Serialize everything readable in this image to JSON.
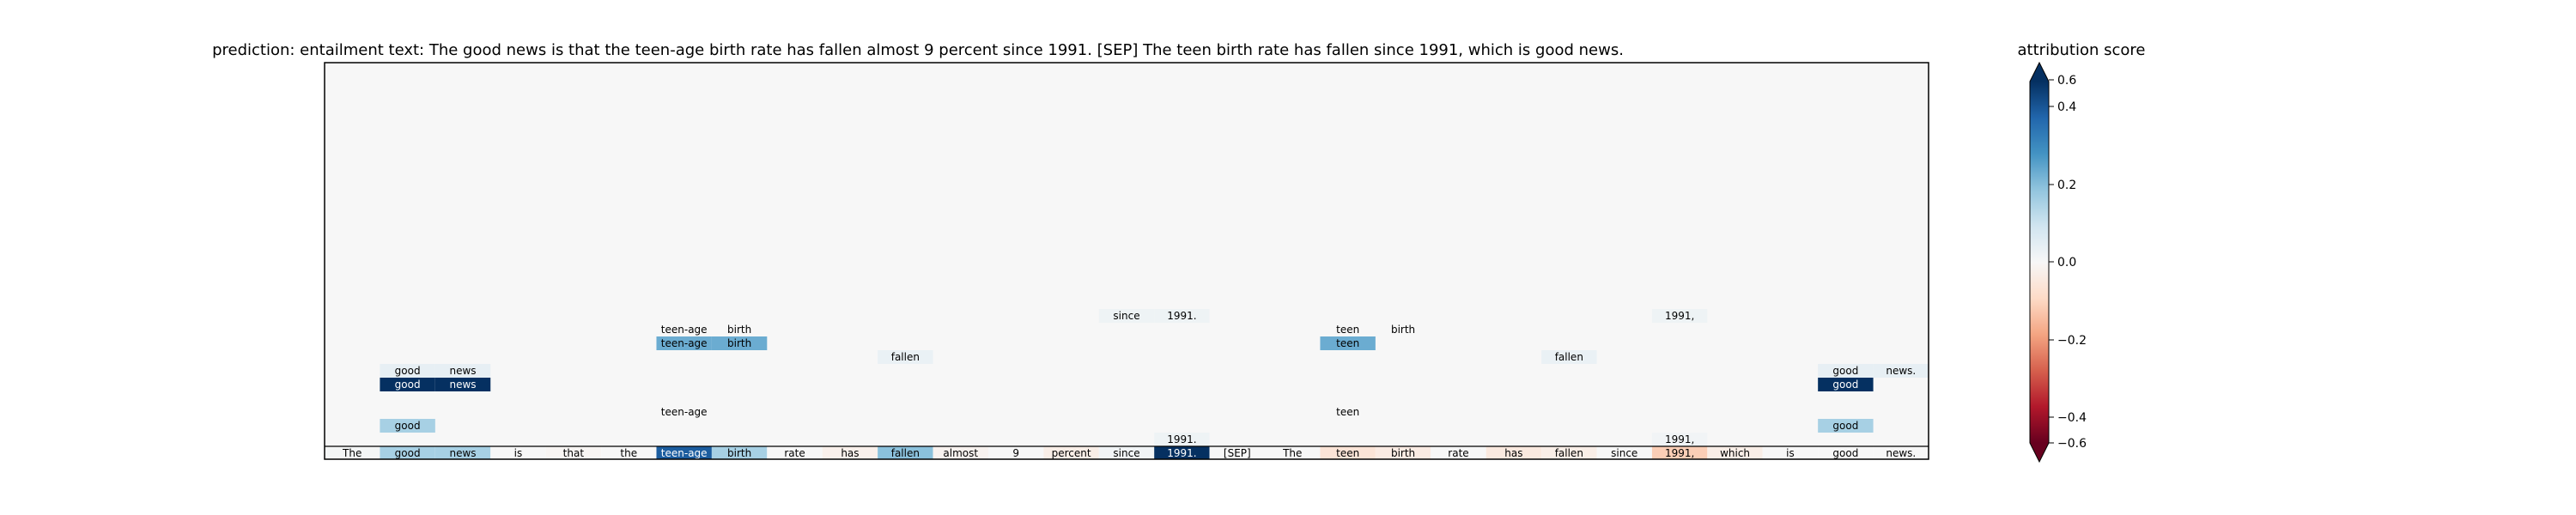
{
  "title": "prediction:  entailment     text:  The good news is that the teen-age birth rate has fallen almost 9 percent since 1991. [SEP] The teen birth rate has fallen since 1991, which is good news.",
  "colorbar": {
    "title": "attribution score",
    "ticks": [
      "0.6",
      "0.4",
      "0.2",
      "0.0",
      "−0.2",
      "−0.4",
      "−0.6"
    ]
  },
  "chart_data": {
    "type": "heatmap",
    "title": "prediction:  entailment     text:  The good news is that the teen-age birth rate has fallen almost 9 percent since 1991. [SEP] The teen birth rate has fallen since 1991, which is good news.",
    "colorbar_label": "attribution score",
    "value_range": [
      -0.6,
      0.6
    ],
    "tokens": [
      "The",
      "good",
      "news",
      "is",
      "that",
      "the",
      "teen-age",
      "birth",
      "rate",
      "has",
      "fallen",
      "almost",
      "9",
      "percent",
      "since",
      "1991.",
      "[SEP]",
      "The",
      "teen",
      "birth",
      "rate",
      "has",
      "fallen",
      "since",
      "1991,",
      "which",
      "is",
      "good",
      "news."
    ],
    "base_row_values": [
      0.01,
      0.2,
      0.2,
      0.0,
      -0.01,
      0.0,
      0.5,
      0.2,
      0.0,
      -0.03,
      0.25,
      -0.02,
      0.0,
      -0.04,
      0.02,
      0.6,
      0.0,
      0.0,
      -0.08,
      -0.05,
      0.0,
      -0.06,
      -0.04,
      0.0,
      -0.15,
      -0.04,
      0.0,
      0.0,
      0.0
    ],
    "layer_cells": [
      {
        "layer": 1,
        "col": 15,
        "value": 0.03,
        "label": "1991."
      },
      {
        "layer": 1,
        "col": 24,
        "value": 0.02,
        "label": "1991,"
      },
      {
        "layer": 2,
        "col": 1,
        "value": 0.2,
        "label": "good"
      },
      {
        "layer": 2,
        "col": 27,
        "value": 0.2,
        "label": "good"
      },
      {
        "layer": 3,
        "col": 6,
        "value": 0.0,
        "label": "teen-age"
      },
      {
        "layer": 3,
        "col": 18,
        "value": 0.0,
        "label": "teen"
      },
      {
        "layer": 5,
        "col": 1,
        "value": 0.65,
        "label": "good"
      },
      {
        "layer": 5,
        "col": 2,
        "value": 0.65,
        "label": "news"
      },
      {
        "layer": 5,
        "col": 27,
        "value": 0.65,
        "label": "good"
      },
      {
        "layer": 6,
        "col": 1,
        "value": 0.05,
        "label": "good"
      },
      {
        "layer": 6,
        "col": 2,
        "value": 0.05,
        "label": "news"
      },
      {
        "layer": 6,
        "col": 27,
        "value": 0.05,
        "label": "good"
      },
      {
        "layer": 6,
        "col": 28,
        "value": 0.05,
        "label": "news."
      },
      {
        "layer": 7,
        "col": 10,
        "value": 0.04,
        "label": "fallen"
      },
      {
        "layer": 7,
        "col": 22,
        "value": 0.04,
        "label": "fallen"
      },
      {
        "layer": 8,
        "col": 6,
        "value": 0.3,
        "label": "teen-age"
      },
      {
        "layer": 8,
        "col": 7,
        "value": 0.3,
        "label": "birth"
      },
      {
        "layer": 8,
        "col": 18,
        "value": 0.3,
        "label": "teen"
      },
      {
        "layer": 9,
        "col": 6,
        "value": 0.0,
        "label": "teen-age"
      },
      {
        "layer": 9,
        "col": 7,
        "value": 0.0,
        "label": "birth"
      },
      {
        "layer": 9,
        "col": 18,
        "value": 0.0,
        "label": "teen"
      },
      {
        "layer": 9,
        "col": 19,
        "value": 0.0,
        "label": "birth"
      },
      {
        "layer": 10,
        "col": 14,
        "value": 0.03,
        "label": "since"
      },
      {
        "layer": 10,
        "col": 15,
        "value": 0.03,
        "label": "1991."
      },
      {
        "layer": 10,
        "col": 24,
        "value": 0.03,
        "label": "1991,"
      }
    ],
    "layers_shown": 28,
    "grid": false,
    "colormap": "RdBu"
  }
}
